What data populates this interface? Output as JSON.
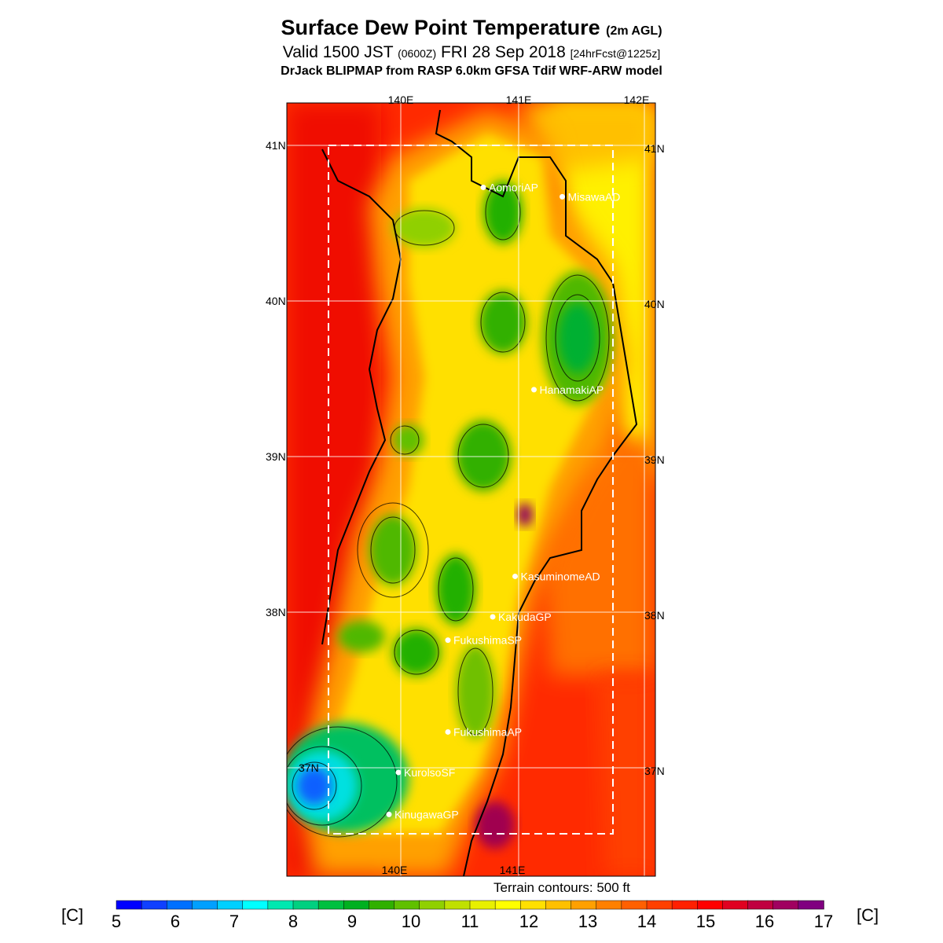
{
  "title": {
    "main": "Surface Dew Point Temperature",
    "main_suffix": "(2m AGL)",
    "valid_prefix": "Valid 1500 JST",
    "valid_utc": "(0600Z)",
    "valid_date": "FRI 28 Sep 2018",
    "forecast": "[24hrFcst@1225z]",
    "model": "DrJack BLIPMAP from RASP 6.0km GFSA Tdif WRF-ARW model"
  },
  "map": {
    "lon_labels": [
      "140E",
      "141E",
      "142E"
    ],
    "lat_labels": [
      "41N",
      "40N",
      "39N",
      "38N",
      "37N"
    ],
    "stations": [
      {
        "name": "AomoriAP",
        "lon": 140.7,
        "lat": 40.73
      },
      {
        "name": "MisawaAD",
        "lon": 141.37,
        "lat": 40.67
      },
      {
        "name": "HanamakiAP",
        "lon": 141.13,
        "lat": 39.43
      },
      {
        "name": "KasuminomeAD",
        "lon": 140.97,
        "lat": 38.23
      },
      {
        "name": "KakudaGP",
        "lon": 140.78,
        "lat": 37.97
      },
      {
        "name": "FukushimaSP",
        "lon": 140.4,
        "lat": 37.82
      },
      {
        "name": "FukushimaAP",
        "lon": 140.4,
        "lat": 37.23
      },
      {
        "name": "KurolsoSF",
        "lon": 139.98,
        "lat": 36.97
      },
      {
        "name": "KinugawaGP",
        "lon": 139.9,
        "lat": 36.7
      }
    ],
    "terrain_note": "Terrain contours: 500 ft"
  },
  "colorbar": {
    "unit_left": "[C]",
    "unit_right": "[C]",
    "labels": [
      "5",
      "6",
      "7",
      "8",
      "9",
      "10",
      "11",
      "12",
      "13",
      "14",
      "15",
      "16",
      "17"
    ],
    "colors": [
      "#0000ff",
      "#1040ff",
      "#0070ff",
      "#00a0ff",
      "#00d0ff",
      "#00ffff",
      "#00e8b0",
      "#00d080",
      "#00c040",
      "#00b020",
      "#30b000",
      "#60c000",
      "#90d000",
      "#c0e000",
      "#e8f000",
      "#ffff00",
      "#ffe000",
      "#ffc000",
      "#ffa000",
      "#ff8000",
      "#ff6000",
      "#ff4000",
      "#ff2000",
      "#ff0000",
      "#e00020",
      "#c00040",
      "#a00060",
      "#800080"
    ]
  }
}
